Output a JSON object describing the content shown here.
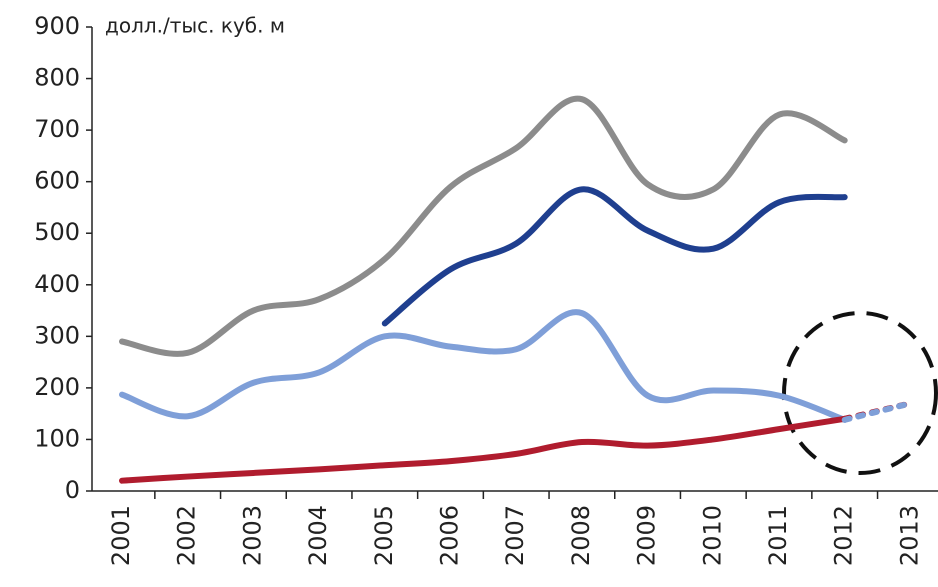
{
  "chart_data": {
    "type": "line",
    "y_label": "долл./тыс. куб. м",
    "categories": [
      "2001",
      "2002",
      "2003",
      "2004",
      "2005",
      "2006",
      "2007",
      "2008",
      "2009",
      "2010",
      "2011",
      "2012",
      "2013"
    ],
    "series": [
      {
        "color": "#8c8c8c",
        "values": [
          290,
          268,
          350,
          372,
          450,
          590,
          665,
          760,
          595,
          585,
          730,
          680,
          null
        ]
      },
      {
        "color": "#1f3f8f",
        "values": [
          null,
          null,
          null,
          null,
          325,
          430,
          480,
          585,
          505,
          470,
          560,
          570,
          null
        ]
      },
      {
        "color": "#7f9fd8",
        "values": [
          187,
          145,
          210,
          230,
          300,
          280,
          275,
          345,
          185,
          195,
          185,
          138,
          null
        ]
      },
      {
        "color": "#b01c2e",
        "values": [
          20,
          28,
          35,
          42,
          50,
          58,
          72,
          95,
          88,
          100,
          120,
          140,
          null
        ]
      },
      {
        "color": "#b01c2e",
        "dashed": true,
        "values": [
          null,
          null,
          null,
          null,
          null,
          null,
          null,
          null,
          null,
          null,
          null,
          140,
          170
        ]
      },
      {
        "color": "#7f9fd8",
        "dashed": true,
        "values": [
          null,
          null,
          null,
          null,
          null,
          null,
          null,
          null,
          null,
          null,
          null,
          138,
          170
        ]
      }
    ],
    "ylim": [
      0,
      900
    ],
    "yticks": [
      0,
      100,
      200,
      300,
      400,
      500,
      600,
      700,
      800,
      900
    ],
    "grid": false
  }
}
